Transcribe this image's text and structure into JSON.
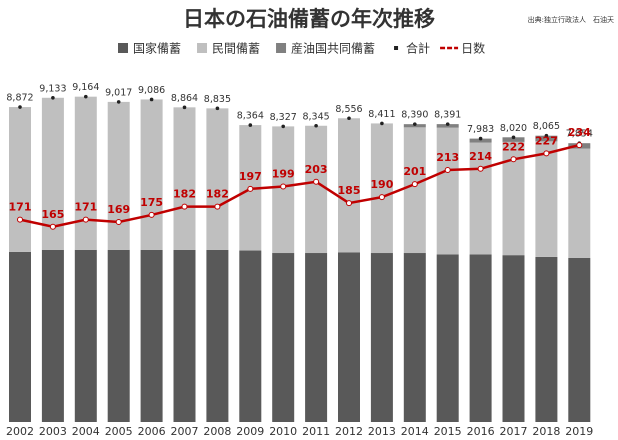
{
  "chart_data": {
    "type": "bar",
    "stacked": true,
    "title": "日本の石油備蓄の年次推移",
    "source": "出典:独立行政法人　石油天",
    "categories": [
      "2002",
      "2003",
      "2004",
      "2005",
      "2006",
      "2007",
      "2008",
      "2009",
      "2010",
      "2011",
      "2012",
      "2013",
      "2014",
      "2015",
      "2016",
      "2017",
      "2018",
      "2019"
    ],
    "ylim": [
      0,
      10000
    ],
    "y2lim": [
      0,
      300
    ],
    "series": [
      {
        "name": "国家備蓄",
        "type": "bar",
        "color": "#595959",
        "values": [
          4790,
          4850,
          4850,
          4850,
          4850,
          4850,
          4850,
          4830,
          4760,
          4760,
          4780,
          4760,
          4760,
          4720,
          4720,
          4700,
          4650,
          4620
        ]
      },
      {
        "name": "民間備蓄",
        "type": "bar",
        "color": "#bfbfbf",
        "values": [
          4082,
          4283,
          4314,
          4167,
          4236,
          4014,
          3985,
          3534,
          3567,
          3585,
          3776,
          3651,
          3540,
          3571,
          3153,
          3190,
          3255,
          3084
        ]
      },
      {
        "name": "産油国共同備蓄",
        "type": "bar",
        "color": "#808080",
        "values": [
          0,
          0,
          0,
          0,
          0,
          0,
          0,
          0,
          0,
          0,
          0,
          0,
          90,
          100,
          110,
          130,
          160,
          150
        ]
      },
      {
        "name": "合計",
        "type": "dot",
        "color": "#222222",
        "values": [
          8872,
          9133,
          9164,
          9017,
          9086,
          8864,
          8835,
          8364,
          8327,
          8345,
          8556,
          8411,
          8390,
          8391,
          7983,
          8020,
          8065,
          7854
        ],
        "value_labels": [
          "8,872",
          "9,133",
          "9,164",
          "9,017",
          "9,086",
          "8,864",
          "8,835",
          "8,364",
          "8,327",
          "8,345",
          "8,556",
          "8,411",
          "8,390",
          "8,391",
          "7,983",
          "8,020",
          "8,065",
          "7,854"
        ]
      },
      {
        "name": "日数",
        "type": "line",
        "axis": "y2",
        "color": "#c00000",
        "values": [
          171,
          165,
          171,
          169,
          175,
          182,
          182,
          197,
          199,
          203,
          185,
          190,
          201,
          213,
          214,
          222,
          227,
          234
        ]
      }
    ]
  }
}
